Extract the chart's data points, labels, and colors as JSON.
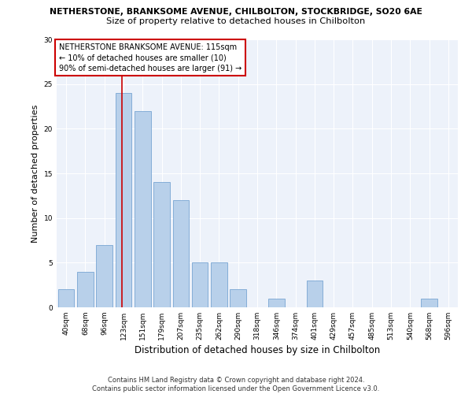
{
  "title_line1": "NETHERSTONE, BRANKSOME AVENUE, CHILBOLTON, STOCKBRIDGE, SO20 6AE",
  "title_line2": "Size of property relative to detached houses in Chilbolton",
  "xlabel": "Distribution of detached houses by size in Chilbolton",
  "ylabel": "Number of detached properties",
  "bar_labels": [
    "40sqm",
    "68sqm",
    "96sqm",
    "123sqm",
    "151sqm",
    "179sqm",
    "207sqm",
    "235sqm",
    "262sqm",
    "290sqm",
    "318sqm",
    "346sqm",
    "374sqm",
    "401sqm",
    "429sqm",
    "457sqm",
    "485sqm",
    "513sqm",
    "540sqm",
    "568sqm",
    "596sqm"
  ],
  "bar_values": [
    2,
    4,
    7,
    24,
    22,
    14,
    12,
    5,
    5,
    2,
    0,
    1,
    0,
    3,
    0,
    0,
    0,
    0,
    0,
    1,
    0
  ],
  "bar_color": "#b8d0ea",
  "bar_edge_color": "#6699cc",
  "vline_x": 2.9,
  "vline_color": "#cc0000",
  "annotation_text": "NETHERSTONE BRANKSOME AVENUE: 115sqm\n← 10% of detached houses are smaller (10)\n90% of semi-detached houses are larger (91) →",
  "annotation_box_color": "#ffffff",
  "annotation_box_edge": "#cc0000",
  "ylim": [
    0,
    30
  ],
  "yticks": [
    0,
    5,
    10,
    15,
    20,
    25,
    30
  ],
  "background_color": "#edf2fa",
  "footer_text": "Contains HM Land Registry data © Crown copyright and database right 2024.\nContains public sector information licensed under the Open Government Licence v3.0.",
  "title_fontsize": 7.8,
  "subtitle_fontsize": 8.2,
  "axis_label_fontsize": 8.0,
  "tick_fontsize": 6.5,
  "annotation_fontsize": 7.0,
  "footer_fontsize": 6.0
}
